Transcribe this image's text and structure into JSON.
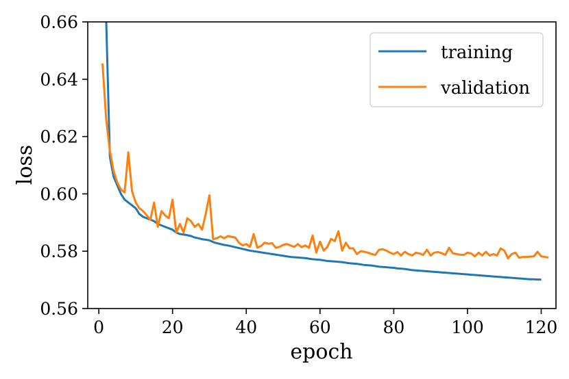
{
  "chart_data": {
    "type": "line",
    "xlabel": "epoch",
    "ylabel": "loss",
    "xlim": [
      -3,
      124
    ],
    "ylim": [
      0.56,
      0.66
    ],
    "x_ticks": [
      0,
      20,
      40,
      60,
      80,
      100,
      120
    ],
    "y_ticks": [
      0.56,
      0.58,
      0.6,
      0.62,
      0.64,
      0.66
    ],
    "x_tick_labels": [
      "0",
      "20",
      "40",
      "60",
      "80",
      "100",
      "120"
    ],
    "y_tick_labels": [
      "0.56",
      "0.58",
      "0.60",
      "0.62",
      "0.64",
      "0.66"
    ],
    "grid": false,
    "legend_position": "top-right",
    "series": [
      {
        "name": "training",
        "color": "#1f77b4",
        "values": [
          0.705,
          0.661,
          0.613,
          0.606,
          0.603,
          0.6,
          0.598,
          0.597,
          0.596,
          0.595,
          0.593,
          0.592,
          0.5915,
          0.591,
          0.5905,
          0.5895,
          0.589,
          0.5885,
          0.588,
          0.5875,
          0.5865,
          0.586,
          0.5858,
          0.5856,
          0.5853,
          0.5848,
          0.5845,
          0.5842,
          0.584,
          0.5838,
          0.5832,
          0.5828,
          0.5825,
          0.5822,
          0.582,
          0.5817,
          0.5814,
          0.5811,
          0.5808,
          0.5805,
          0.5802,
          0.58,
          0.5798,
          0.5796,
          0.5794,
          0.5792,
          0.579,
          0.5788,
          0.5786,
          0.5784,
          0.5782,
          0.578,
          0.5779,
          0.5778,
          0.5777,
          0.5776,
          0.5774,
          0.5772,
          0.5771,
          0.577,
          0.5768,
          0.5766,
          0.5765,
          0.5764,
          0.5763,
          0.5762,
          0.576,
          0.5758,
          0.5757,
          0.5756,
          0.5754,
          0.5752,
          0.5751,
          0.575,
          0.5748,
          0.5746,
          0.5745,
          0.5744,
          0.5743,
          0.5742,
          0.574,
          0.5739,
          0.5738,
          0.5736,
          0.5734,
          0.5733,
          0.5732,
          0.5731,
          0.573,
          0.5729,
          0.5728,
          0.5727,
          0.5726,
          0.5725,
          0.5724,
          0.5723,
          0.5722,
          0.5721,
          0.572,
          0.5719,
          0.5718,
          0.5717,
          0.5716,
          0.5715,
          0.5714,
          0.5713,
          0.5712,
          0.5711,
          0.571,
          0.5709,
          0.5708,
          0.5707,
          0.5706,
          0.5705,
          0.5704,
          0.5703,
          0.5702,
          0.5702,
          0.5701,
          0.5701
        ]
      },
      {
        "name": "validation",
        "color": "#ff7f0e",
        "values": [
          0.6455,
          0.626,
          0.615,
          0.608,
          0.604,
          0.6015,
          0.6005,
          0.6145,
          0.601,
          0.597,
          0.595,
          0.594,
          0.5925,
          0.591,
          0.597,
          0.5885,
          0.594,
          0.5925,
          0.5915,
          0.598,
          0.5865,
          0.5895,
          0.5865,
          0.5915,
          0.5905,
          0.5885,
          0.5895,
          0.5875,
          0.593,
          0.5995,
          0.5842,
          0.5845,
          0.5852,
          0.5845,
          0.5853,
          0.585,
          0.5848,
          0.583,
          0.582,
          0.5825,
          0.5815,
          0.586,
          0.5812,
          0.5818,
          0.583,
          0.5826,
          0.5828,
          0.5812,
          0.5815,
          0.5822,
          0.5825,
          0.582,
          0.5815,
          0.5825,
          0.5814,
          0.582,
          0.5812,
          0.5855,
          0.5795,
          0.5833,
          0.5802,
          0.5815,
          0.5843,
          0.5835,
          0.587,
          0.5802,
          0.583,
          0.581,
          0.581,
          0.579,
          0.58,
          0.5798,
          0.5795,
          0.579,
          0.5787,
          0.5805,
          0.5807,
          0.5802,
          0.5795,
          0.579,
          0.5797,
          0.5785,
          0.5798,
          0.579,
          0.5785,
          0.5795,
          0.5792,
          0.5787,
          0.5805,
          0.5785,
          0.5795,
          0.5797,
          0.5793,
          0.5787,
          0.5812,
          0.5793,
          0.579,
          0.5788,
          0.5787,
          0.5795,
          0.5792,
          0.5782,
          0.5795,
          0.5785,
          0.5798,
          0.5785,
          0.579,
          0.5785,
          0.581,
          0.5802,
          0.5775,
          0.579,
          0.5795,
          0.5777,
          0.578,
          0.578,
          0.5781,
          0.5782,
          0.5798,
          0.5782,
          0.578,
          0.5778
        ]
      }
    ]
  }
}
